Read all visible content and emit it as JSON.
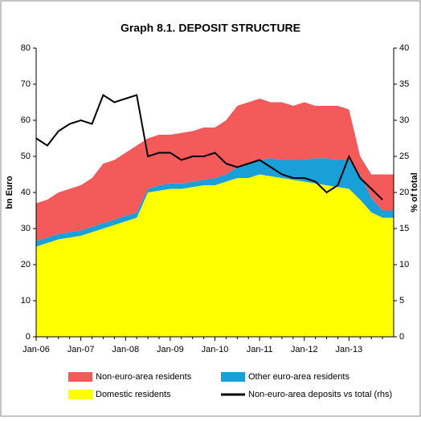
{
  "chart_data": {
    "type": "area",
    "title": "Graph 8.1. DEPOSIT STRUCTURE",
    "ylabel": "bn Euro",
    "y2label": "% of total",
    "categories": [
      "Jan-06",
      null,
      null,
      null,
      "Jan-07",
      null,
      null,
      null,
      "Jan-08",
      null,
      null,
      null,
      "Jan-09",
      null,
      null,
      null,
      "Jan-10",
      null,
      null,
      null,
      "Jan-11",
      null,
      null,
      null,
      "Jan-12",
      null,
      null,
      null,
      "Jan-13",
      null,
      null,
      null
    ],
    "series": [
      {
        "name": "Non-euro-area residents",
        "color": "#f55a5a",
        "values": [
          10.5,
          10.5,
          11.5,
          12,
          12.5,
          13.5,
          16.5,
          16.5,
          17.5,
          18.5,
          14,
          14,
          13.5,
          14,
          14,
          14.5,
          14,
          15,
          17,
          17,
          17,
          15.5,
          16,
          15,
          16,
          14.5,
          14.5,
          15,
          14,
          5,
          6.5,
          10
        ]
      },
      {
        "name": "Other euro-area residents",
        "color": "#1aa0d8",
        "values": [
          1.5,
          1.5,
          1.5,
          1.5,
          1.5,
          1.5,
          1.5,
          1.5,
          1.5,
          1.5,
          1,
          1.5,
          1.5,
          1.5,
          1.5,
          1.5,
          2,
          2,
          3,
          4,
          4,
          5,
          5,
          5.5,
          6,
          7,
          7.5,
          7.5,
          8,
          7,
          4,
          2
        ]
      },
      {
        "name": "Domestic residents",
        "color": "#ffff00",
        "values": [
          25,
          26,
          27,
          27.5,
          28,
          29,
          30,
          31,
          32,
          33,
          40,
          40.5,
          41,
          41,
          41.5,
          42,
          42,
          43,
          44,
          44,
          45,
          44.5,
          44,
          43.5,
          43,
          42.5,
          42,
          41.5,
          41,
          38,
          34.5,
          33
        ]
      },
      {
        "name": "Non-euro-area deposits vs total (rhs)",
        "color": "#000000",
        "type": "line",
        "axis": "y2",
        "values": [
          27.5,
          26.5,
          28.5,
          29.5,
          30,
          29.5,
          33.5,
          32.5,
          33,
          33.5,
          25,
          25.5,
          25.5,
          24.5,
          25,
          25,
          25.5,
          24,
          23.5,
          24,
          24.5,
          23.5,
          22.5,
          22,
          22,
          21.5,
          20,
          21,
          25,
          22,
          20.5,
          19
        ]
      }
    ],
    "ylim": [
      0,
      80
    ],
    "yticks": [
      0,
      10,
      20,
      30,
      40,
      50,
      60,
      70,
      80
    ],
    "y2lim": [
      0,
      40
    ],
    "y2ticks": [
      0,
      5,
      10,
      15,
      20,
      25,
      30,
      35,
      40
    ],
    "legend": "bottom"
  }
}
